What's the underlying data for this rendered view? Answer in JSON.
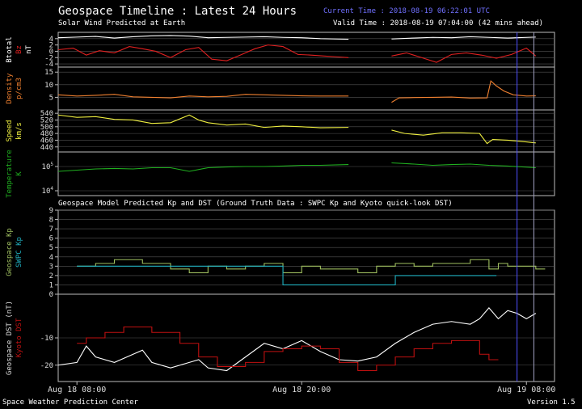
{
  "header": {
    "title": "Geospace Timeline : Latest 24 Hours",
    "subtitle": "Solar Wind Predicted at Earth",
    "current_time": "Current Time : 2018-08-19 06:22:01 UTC",
    "valid_time": "Valid Time : 2018-08-19 07:04:00 (42 mins ahead)",
    "model_caption": "Geospace Model Predicted Kp and DST (Ground Truth Data : SWPC Kp and Kyoto quick-look DST)"
  },
  "footer": {
    "org": "Space Weather Prediction Center",
    "version": "Version 1.5"
  },
  "colors": {
    "btotal": "#ffffff",
    "bz": "#e02020",
    "density": "#f08030",
    "speed": "#f0f040",
    "temperature": "#20b020",
    "kp_model": "#a0c060",
    "kp_swpc": "#20b0c0",
    "dst_model": "#ffffff",
    "dst_kyoto": "#c01010",
    "current_line": "#5050ff",
    "valid_line": "#a0a0c0"
  },
  "chart_data": {
    "x_ticks": [
      "Aug 18 08:00",
      "Aug 18 20:00",
      "Aug 19 08:00"
    ],
    "panels": [
      {
        "id": "mag",
        "type": "line",
        "ylabels": [
          {
            "text": "Btotal",
            "color": "#ffffff"
          },
          {
            "text": "Bz",
            "color": "#e02020"
          },
          {
            "text": "nT",
            "color": "#ffffff"
          }
        ],
        "yticks": [
          "4",
          "2",
          "0",
          "-2",
          "-4"
        ],
        "ylim": [
          -5,
          6
        ],
        "series": [
          {
            "name": "Btotal",
            "color": "#ffffff",
            "segments": [
              {
                "x": [
                  0.0,
                  1.0,
                  2.0,
                  3.0,
                  4.0,
                  5.0,
                  6.0,
                  7.0,
                  8.0,
                  9.0,
                  10.0,
                  11.0,
                  12.0,
                  13.0,
                  14.0,
                  15.5
                ],
                "y": [
                  4.3,
                  4.5,
                  4.7,
                  4.2,
                  4.6,
                  4.9,
                  5.0,
                  4.8,
                  4.3,
                  4.4,
                  4.5,
                  4.6,
                  4.4,
                  4.3,
                  4.0,
                  3.8
                ]
              },
              {
                "x": [
                  17.8,
                  19.0,
                  20.0,
                  21.0,
                  22.0,
                  23.0,
                  24.0,
                  25.5
                ],
                "y": [
                  3.9,
                  4.2,
                  4.4,
                  4.3,
                  4.6,
                  4.4,
                  4.2,
                  4.5
                ]
              }
            ]
          },
          {
            "name": "Bz",
            "color": "#e02020",
            "segments": [
              {
                "x": [
                  0.0,
                  0.8,
                  1.5,
                  2.2,
                  3.0,
                  3.8,
                  4.5,
                  5.2,
                  6.0,
                  6.8,
                  7.5,
                  8.2,
                  9.0,
                  9.8,
                  10.5,
                  11.2,
                  12.0,
                  12.8,
                  13.5,
                  14.2,
                  15.0,
                  15.5
                ],
                "y": [
                  0.5,
                  1.0,
                  -1.2,
                  0.2,
                  -0.5,
                  1.5,
                  0.8,
                  0.0,
                  -2.0,
                  0.5,
                  1.2,
                  -2.5,
                  -3.0,
                  -1.0,
                  0.8,
                  2.0,
                  1.5,
                  -1.0,
                  -1.2,
                  -1.5,
                  -1.8,
                  -2.0
                ]
              },
              {
                "x": [
                  17.8,
                  18.6,
                  19.4,
                  20.2,
                  21.0,
                  21.8,
                  22.6,
                  23.4,
                  24.2,
                  25.0,
                  25.5
                ],
                "y": [
                  -1.5,
                  -0.5,
                  -2.0,
                  -3.5,
                  -1.0,
                  -0.5,
                  -1.2,
                  -2.2,
                  -1.0,
                  1.0,
                  -1.5
                ]
              }
            ]
          }
        ]
      },
      {
        "id": "density",
        "type": "line",
        "ylabels": [
          {
            "text": "Density",
            "color": "#f08030"
          },
          {
            "text": "p/cm3",
            "color": "#f08030"
          }
        ],
        "yticks": [
          "15",
          "10",
          "5"
        ],
        "ylim": [
          0,
          17
        ],
        "series": [
          {
            "name": "Density",
            "color": "#f08030",
            "segments": [
              {
                "x": [
                  0.0,
                  1.0,
                  2.0,
                  3.0,
                  4.0,
                  5.0,
                  6.0,
                  7.0,
                  8.0,
                  9.0,
                  10.0,
                  11.0,
                  12.0,
                  13.0,
                  14.0,
                  15.5
                ],
                "y": [
                  6.0,
                  5.5,
                  5.8,
                  6.2,
                  5.2,
                  5.0,
                  4.8,
                  5.5,
                  5.2,
                  5.4,
                  6.2,
                  6.0,
                  5.8,
                  5.6,
                  5.5,
                  5.5
                ]
              },
              {
                "x": [
                  17.8,
                  18.2,
                  19.0,
                  20.0,
                  21.0,
                  22.0,
                  22.9,
                  23.1,
                  23.4,
                  23.8,
                  24.3,
                  25.0,
                  25.5
                ],
                "y": [
                  3.0,
                  4.8,
                  4.9,
                  5.0,
                  5.1,
                  4.7,
                  4.8,
                  11.5,
                  9.5,
                  7.5,
                  6.0,
                  5.5,
                  5.6
                ]
              }
            ]
          }
        ]
      },
      {
        "id": "speed",
        "type": "line",
        "ylabels": [
          {
            "text": "Speed",
            "color": "#f0f040"
          },
          {
            "text": "km/s",
            "color": "#f0f040"
          }
        ],
        "yticks": [
          "540",
          "520",
          "500",
          "480",
          "460",
          "440"
        ],
        "ylim": [
          425,
          550
        ],
        "series": [
          {
            "name": "Speed",
            "color": "#f0f040",
            "segments": [
              {
                "x": [
                  0.0,
                  1.0,
                  2.0,
                  3.0,
                  4.0,
                  5.0,
                  6.0,
                  7.0,
                  7.5,
                  8.0,
                  9.0,
                  10.0,
                  11.0,
                  12.0,
                  13.0,
                  14.0,
                  15.5
                ],
                "y": [
                  535,
                  528,
                  530,
                  522,
                  520,
                  510,
                  512,
                  535,
                  520,
                  512,
                  505,
                  508,
                  498,
                  502,
                  500,
                  497,
                  498
                ]
              },
              {
                "x": [
                  17.8,
                  18.5,
                  19.5,
                  20.5,
                  21.5,
                  22.5,
                  22.9,
                  23.2,
                  24.0,
                  25.0,
                  25.5
                ],
                "y": [
                  490,
                  480,
                  475,
                  482,
                  482,
                  480,
                  450,
                  462,
                  460,
                  455,
                  452
                ]
              }
            ]
          }
        ]
      },
      {
        "id": "temp",
        "type": "line",
        "ylabels": [
          {
            "text": "Temperature",
            "color": "#20b020"
          },
          {
            "text": "K",
            "color": "#20b020"
          }
        ],
        "yticks": [
          "10^5",
          "10^4"
        ],
        "ylim": [
          3.8,
          5.6
        ],
        "series": [
          {
            "name": "Temperature",
            "color": "#20b020",
            "segments": [
              {
                "x": [
                  0.0,
                  1.0,
                  2.0,
                  3.0,
                  4.0,
                  5.0,
                  6.0,
                  7.0,
                  8.0,
                  9.0,
                  10.0,
                  11.0,
                  12.0,
                  13.0,
                  14.0,
                  15.5
                ],
                "y": [
                  4.8,
                  4.85,
                  4.9,
                  4.92,
                  4.9,
                  4.95,
                  4.95,
                  4.8,
                  4.95,
                  4.98,
                  5.0,
                  5.0,
                  5.02,
                  5.05,
                  5.05,
                  5.08
                ]
              },
              {
                "x": [
                  17.8,
                  19.0,
                  20.0,
                  21.0,
                  22.0,
                  23.0,
                  24.0,
                  25.5
                ],
                "y": [
                  5.15,
                  5.1,
                  5.05,
                  5.08,
                  5.1,
                  5.05,
                  5.02,
                  4.95
                ]
              }
            ]
          }
        ]
      },
      {
        "id": "kp",
        "type": "step",
        "ylabels": [
          {
            "text": "Geospace Kp",
            "color": "#a0c060"
          },
          {
            "text": "SWPC Kp",
            "color": "#20b0c0"
          }
        ],
        "yticks": [
          "9",
          "8",
          "7",
          "6",
          "5",
          "4",
          "3",
          "2",
          "1",
          "0"
        ],
        "ylim": [
          0,
          9
        ],
        "series": [
          {
            "name": "Geospace Kp",
            "color": "#a0c060",
            "x": [
              1.0,
              2.0,
              3.0,
              4.5,
              6.0,
              7.0,
              8.0,
              9.0,
              10.0,
              11.0,
              12.0,
              13.0,
              14.0,
              16.0,
              17.0,
              18.0,
              19.0,
              20.0,
              21.0,
              22.0,
              23.0,
              23.5,
              24.0,
              25.5
            ],
            "y": [
              3.0,
              3.3,
              3.7,
              3.3,
              2.7,
              2.3,
              3.0,
              2.7,
              3.0,
              3.3,
              2.3,
              3.0,
              2.7,
              2.3,
              3.0,
              3.3,
              3.0,
              3.3,
              3.3,
              3.7,
              2.7,
              3.3,
              3.0,
              2.7
            ]
          },
          {
            "name": "SWPC Kp",
            "color": "#20b0c0",
            "x": [
              1.0,
              6.0,
              9.0,
              12.0,
              15.0,
              18.0,
              21.0,
              22.9
            ],
            "y": [
              3.0,
              3.0,
              3.0,
              1.0,
              1.0,
              2.0,
              2.0,
              2.0
            ]
          }
        ]
      },
      {
        "id": "dst",
        "type": "line",
        "ylabels": [
          {
            "text": "Geospace DST (nT)",
            "color": "#dddddd"
          },
          {
            "text": "Kyoto DST",
            "color": "#c01010"
          }
        ],
        "yticks": [
          "-10",
          "-20"
        ],
        "ylim": [
          -26,
          6
        ],
        "series": [
          {
            "name": "Geospace DST",
            "color": "#ffffff",
            "x": [
              0.0,
              1.0,
              1.5,
              2.0,
              3.0,
              4.0,
              4.5,
              5.0,
              6.0,
              7.0,
              7.5,
              8.0,
              9.0,
              10.0,
              11.0,
              12.0,
              13.0,
              14.0,
              15.0,
              16.0,
              17.0,
              18.0,
              19.0,
              20.0,
              21.0,
              22.0,
              22.5,
              23.0,
              23.5,
              24.0,
              24.5,
              25.0,
              25.5
            ],
            "y": [
              -20.0,
              -19.0,
              -13.0,
              -17.0,
              -19.0,
              -16.0,
              -14.5,
              -19.0,
              -21.0,
              -19.0,
              -18.0,
              -21.0,
              -22.0,
              -17.0,
              -12.0,
              -14.0,
              -11.0,
              -15.0,
              -18.0,
              -18.5,
              -17.0,
              -12.0,
              -8.0,
              -5.0,
              -4.0,
              -5.0,
              -3.0,
              1.0,
              -3.0,
              0.0,
              -1.0,
              -3.0,
              -1.0
            ]
          },
          {
            "name": "Kyoto DST",
            "color": "#c01010",
            "step": true,
            "x": [
              1.0,
              1.5,
              2.5,
              3.5,
              5.0,
              6.5,
              7.5,
              8.5,
              10.0,
              11.0,
              12.0,
              13.0,
              14.0,
              15.0,
              16.0,
              17.0,
              18.0,
              19.0,
              20.0,
              21.0,
              22.5,
              23.0
            ],
            "y": [
              -12.0,
              -10.0,
              -8.0,
              -6.0,
              -8.0,
              -12.0,
              -17.0,
              -20.5,
              -19.0,
              -15.0,
              -14.0,
              -13.0,
              -14.0,
              -19.0,
              -22.0,
              -20.0,
              -17.0,
              -14.0,
              -12.0,
              -11.0,
              -16.0,
              -18.0
            ]
          }
        ]
      }
    ]
  }
}
